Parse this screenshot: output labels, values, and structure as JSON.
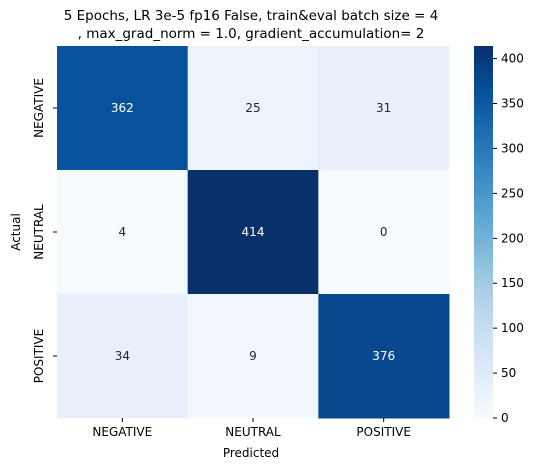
{
  "chart_data": {
    "type": "heatmap",
    "title_lines": [
      "5 Epochs, LR 3e-5 fp16 False, train&eval batch size = 4",
      ", max_grad_norm = 1.0, gradient_accumulation= 2"
    ],
    "xlabel": "Predicted",
    "ylabel": "Actual",
    "x_categories": [
      "NEGATIVE",
      "NEUTRAL",
      "POSITIVE"
    ],
    "y_categories": [
      "NEGATIVE",
      "NEUTRAL",
      "POSITIVE"
    ],
    "values": [
      [
        362,
        25,
        31
      ],
      [
        4,
        414,
        0
      ],
      [
        34,
        9,
        376
      ]
    ],
    "colormap": "Blues",
    "colorbar": {
      "range": [
        0,
        414
      ],
      "ticks": [
        0,
        50,
        100,
        150,
        200,
        250,
        300,
        350,
        400
      ]
    }
  }
}
